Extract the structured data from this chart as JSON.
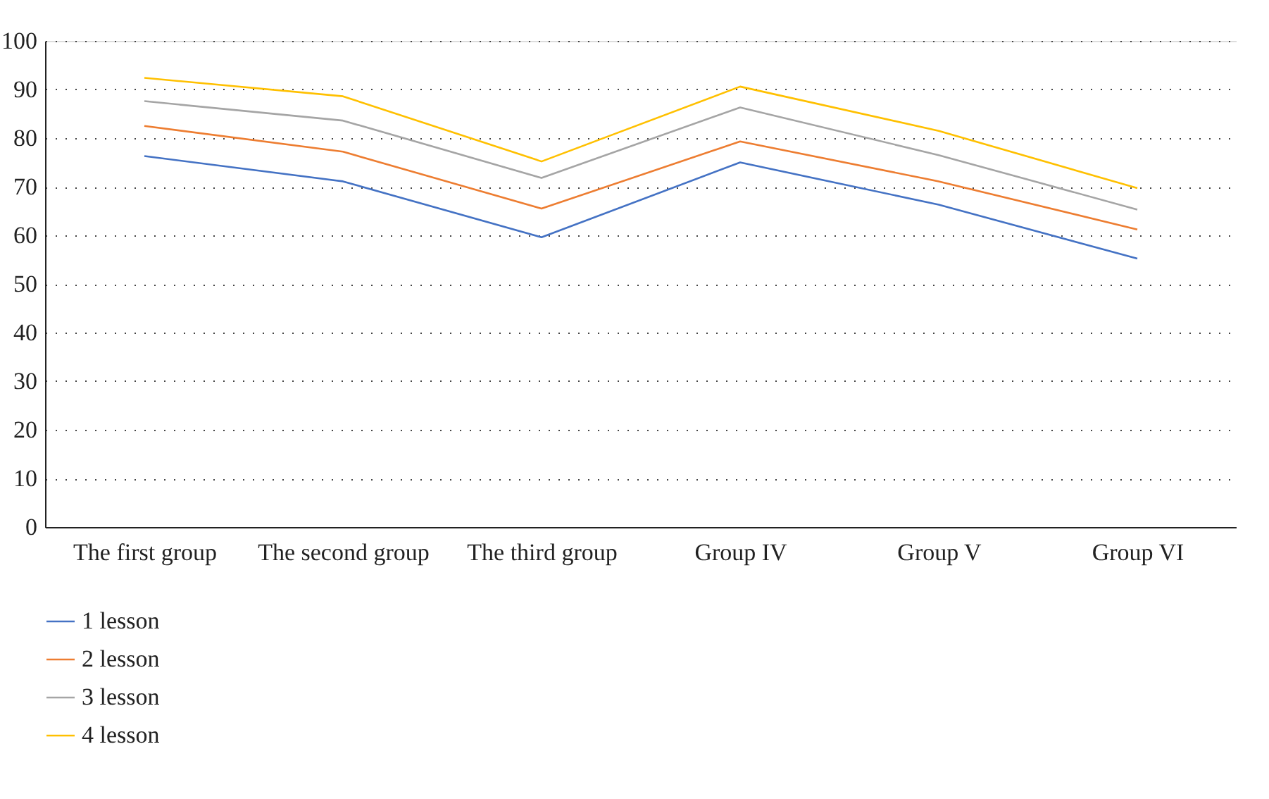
{
  "chart_data": {
    "type": "line",
    "categories": [
      "The first group",
      "The second group",
      "The third group",
      "Group IV",
      "Group V",
      "Group VI"
    ],
    "series": [
      {
        "name": "1 lesson",
        "color": "#4472c4",
        "values": [
          76.3,
          71.1,
          59.6,
          75.0,
          66.3,
          55.2
        ]
      },
      {
        "name": "2 lesson",
        "color": "#ed7d31",
        "values": [
          82.5,
          77.2,
          65.5,
          79.3,
          71.1,
          61.2
        ]
      },
      {
        "name": "3 lesson",
        "color": "#a5a5a5",
        "values": [
          87.6,
          83.6,
          71.8,
          86.3,
          76.5,
          65.3
        ]
      },
      {
        "name": "4 lesson",
        "color": "#ffc000",
        "values": [
          92.4,
          88.6,
          75.2,
          90.6,
          81.5,
          69.7
        ]
      }
    ],
    "ylim": [
      0,
      100
    ],
    "yticks": [
      0,
      10,
      20,
      30,
      40,
      50,
      60,
      70,
      80,
      90,
      100
    ],
    "grid": "y",
    "legend": "bottom",
    "marker": "none",
    "line_style": "solid"
  }
}
